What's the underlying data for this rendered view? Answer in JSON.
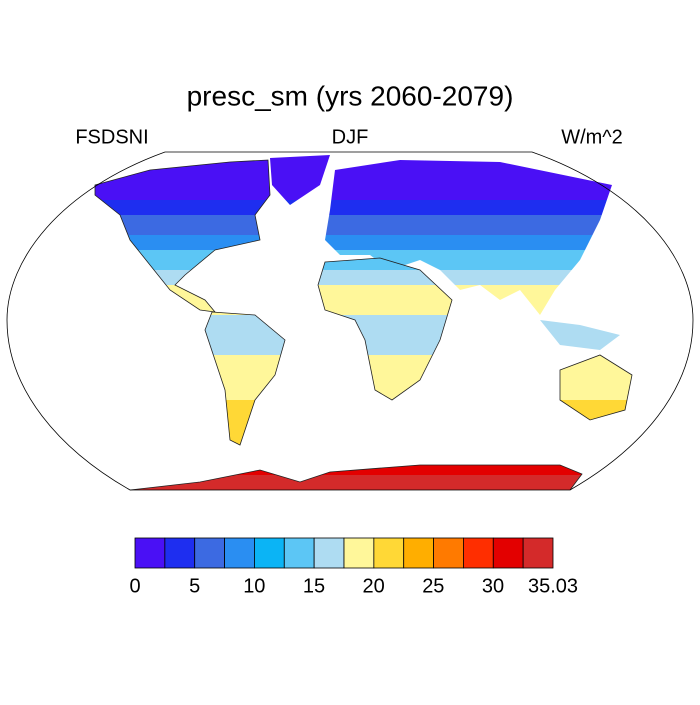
{
  "title": "presc_sm (yrs 2060-2079)",
  "left_string": "FSDSNI",
  "center_string": "DJF",
  "right_string": "W/m^2",
  "colorbar": {
    "colors": [
      "#4a10f5",
      "#1e2ef0",
      "#3c6ae2",
      "#2a8ef2",
      "#0bb4f5",
      "#5cc6f5",
      "#aedcf2",
      "#fff79a",
      "#ffd836",
      "#ffae00",
      "#ff7a00",
      "#ff2e00",
      "#e30000",
      "#d42a2a"
    ],
    "ticks": [
      0,
      5,
      10,
      15,
      20,
      25,
      30,
      35.03
    ]
  }
}
